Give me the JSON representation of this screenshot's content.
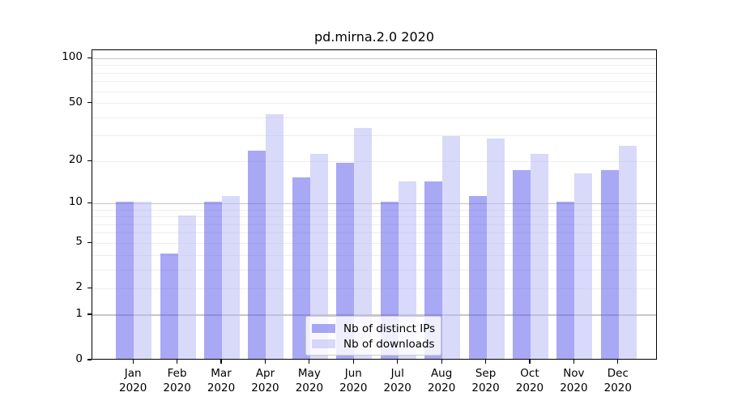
{
  "chart_data": {
    "type": "bar",
    "title": "pd.mirna.2.0 2020",
    "categories": [
      "Jan",
      "Feb",
      "Mar",
      "Apr",
      "May",
      "Jun",
      "Jul",
      "Aug",
      "Sep",
      "Oct",
      "Nov",
      "Dec"
    ],
    "category_year": "2020",
    "series": [
      {
        "name": "Nb of distinct IPs",
        "color": "#a8a8f5",
        "fill": "rgba(97,97,237,0.55)",
        "values": [
          10,
          4,
          10,
          23,
          15,
          19,
          10,
          14,
          11,
          17,
          10,
          17
        ]
      },
      {
        "name": "Nb of downloads",
        "color": "#d9d9f7",
        "fill": "rgba(186,186,246,0.55)",
        "values": [
          10,
          8,
          11,
          41,
          22,
          33,
          14,
          29,
          28,
          22,
          16,
          25
        ]
      }
    ],
    "yticks": [
      0,
      1,
      2,
      5,
      10,
      20,
      50,
      100
    ],
    "xlabel": "",
    "ylabel": "",
    "scale": "log1p",
    "ylim": [
      0,
      114
    ],
    "grid": {
      "major_lines": [
        1,
        10,
        100
      ],
      "minor_lines": [
        2,
        3,
        4,
        5,
        6,
        7,
        8,
        9,
        20,
        30,
        40,
        50,
        60,
        70,
        80,
        90
      ],
      "major_color": "#c6c6c6",
      "minor_color": "#ededed"
    },
    "legend_position": "lower-center",
    "axis_color": "#000000"
  }
}
